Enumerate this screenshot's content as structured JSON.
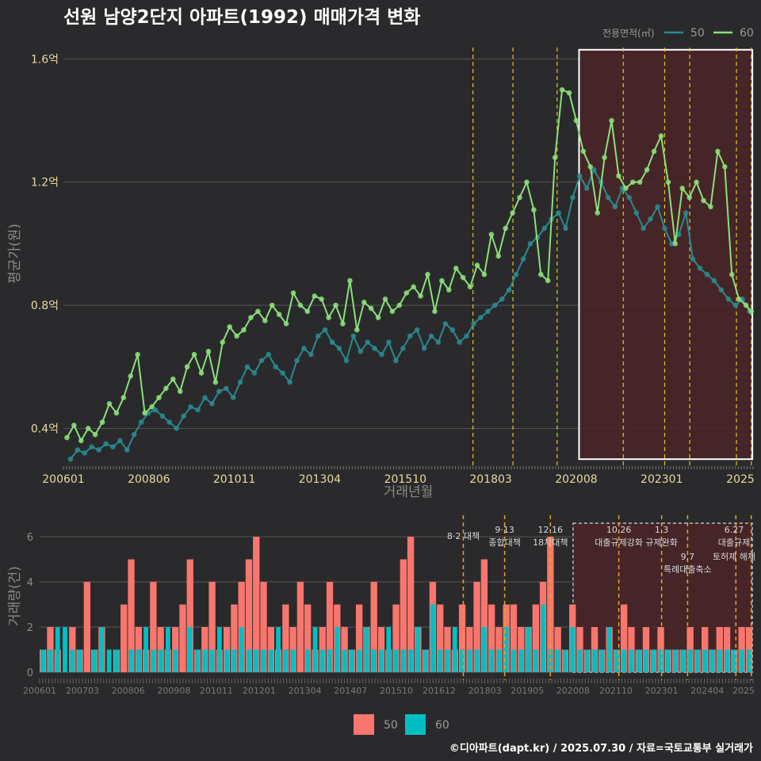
{
  "title": "선원 남양2단지 아파트(1992) 매매가격 변화",
  "caption": "©디아파트(dapt.kr) / 2025.07.30 / 자료=국토교통부 실거래가",
  "colors": {
    "bg": "#2a2a2c",
    "grid": "#555555",
    "series50": "#2a8a8f",
    "series60": "#8be07a",
    "bar50": "#f8766d",
    "bar60": "#00bfc4",
    "policy_line": "#e6c619",
    "policy_line_bottom": "#f0a020",
    "highlight_fill": "#4a2428",
    "highlight_border": "#ffffff"
  },
  "chart_data": [
    {
      "type": "line",
      "name": "price",
      "xlabel": "거래년월",
      "ylabel": "평균가(원)",
      "x_range": [
        2006.0,
        2025.5
      ],
      "ylim": [
        0.28,
        1.65
      ],
      "y_ticks": [
        0.4,
        0.8,
        1.2,
        1.6
      ],
      "y_tick_labels": [
        "0.4억",
        "0.8억",
        "1.2억",
        "1.6억"
      ],
      "x_ticks": [
        2006.0,
        2008.417,
        2010.833,
        2013.25,
        2015.667,
        2018.083,
        2020.5,
        2022.917,
        2025.333
      ],
      "x_tick_labels": [
        "200601",
        "200806",
        "201011",
        "201304",
        "201510",
        "201803",
        "202008",
        "202301",
        "2025"
      ],
      "legend_title": "전용면적(㎡)",
      "legend_position": "top-right",
      "series": [
        {
          "name": "60",
          "x": [
            2006.1,
            2006.3,
            2006.5,
            2006.7,
            2006.9,
            2007.1,
            2007.3,
            2007.5,
            2007.7,
            2007.9,
            2008.1,
            2008.3,
            2008.5,
            2008.7,
            2008.9,
            2009.1,
            2009.3,
            2009.5,
            2009.7,
            2009.9,
            2010.1,
            2010.3,
            2010.5,
            2010.7,
            2010.9,
            2011.1,
            2011.3,
            2011.5,
            2011.7,
            2011.9,
            2012.1,
            2012.3,
            2012.5,
            2012.7,
            2012.9,
            2013.1,
            2013.3,
            2013.5,
            2013.7,
            2013.9,
            2014.1,
            2014.3,
            2014.5,
            2014.7,
            2014.9,
            2015.1,
            2015.3,
            2015.5,
            2015.7,
            2015.9,
            2016.1,
            2016.3,
            2016.5,
            2016.7,
            2016.9,
            2017.1,
            2017.3,
            2017.5,
            2017.7,
            2017.9,
            2018.1,
            2018.3,
            2018.5,
            2018.7,
            2018.9,
            2019.1,
            2019.3,
            2019.5,
            2019.7,
            2019.9,
            2020.1,
            2020.3,
            2020.5,
            2020.7,
            2020.9,
            2021.1,
            2021.3,
            2021.5,
            2021.7,
            2021.9,
            2022.1,
            2022.3,
            2022.5,
            2022.7,
            2022.9,
            2023.1,
            2023.3,
            2023.5,
            2023.7,
            2023.9,
            2024.1,
            2024.3,
            2024.5,
            2024.7,
            2024.9,
            2025.1,
            2025.3,
            2025.45
          ],
          "values": [
            0.37,
            0.41,
            0.36,
            0.4,
            0.38,
            0.42,
            0.48,
            0.45,
            0.5,
            0.57,
            0.64,
            0.45,
            0.47,
            0.5,
            0.53,
            0.56,
            0.52,
            0.6,
            0.64,
            0.58,
            0.65,
            0.55,
            0.68,
            0.73,
            0.7,
            0.72,
            0.76,
            0.78,
            0.75,
            0.8,
            0.77,
            0.74,
            0.84,
            0.8,
            0.78,
            0.83,
            0.82,
            0.76,
            0.8,
            0.74,
            0.88,
            0.72,
            0.81,
            0.79,
            0.76,
            0.82,
            0.78,
            0.8,
            0.84,
            0.86,
            0.83,
            0.9,
            0.78,
            0.88,
            0.85,
            0.92,
            0.89,
            0.86,
            0.93,
            0.9,
            1.03,
            0.96,
            1.05,
            1.1,
            1.15,
            1.2,
            1.11,
            0.9,
            0.88,
            1.28,
            1.5,
            1.49,
            1.4,
            1.3,
            1.25,
            1.1,
            1.28,
            1.4,
            1.22,
            1.18,
            1.2,
            1.2,
            1.24,
            1.3,
            1.35,
            1.2,
            1.0,
            1.18,
            1.15,
            1.2,
            1.14,
            1.12,
            1.3,
            1.25,
            0.9,
            0.82,
            0.8,
            0.78
          ]
        },
        {
          "name": "50",
          "x": [
            2006.2,
            2006.4,
            2006.6,
            2006.8,
            2007.0,
            2007.2,
            2007.4,
            2007.6,
            2007.8,
            2008.0,
            2008.2,
            2008.4,
            2008.6,
            2008.8,
            2009.0,
            2009.2,
            2009.4,
            2009.6,
            2009.8,
            2010.0,
            2010.2,
            2010.4,
            2010.6,
            2010.8,
            2011.0,
            2011.2,
            2011.4,
            2011.6,
            2011.8,
            2012.0,
            2012.2,
            2012.4,
            2012.6,
            2012.8,
            2013.0,
            2013.2,
            2013.4,
            2013.6,
            2013.8,
            2014.0,
            2014.2,
            2014.4,
            2014.6,
            2014.8,
            2015.0,
            2015.2,
            2015.4,
            2015.6,
            2015.8,
            2016.0,
            2016.2,
            2016.4,
            2016.6,
            2016.8,
            2017.0,
            2017.2,
            2017.4,
            2017.6,
            2017.8,
            2018.0,
            2018.2,
            2018.4,
            2018.6,
            2018.8,
            2019.0,
            2019.2,
            2019.4,
            2019.6,
            2019.8,
            2020.0,
            2020.2,
            2020.4,
            2020.6,
            2020.8,
            2021.0,
            2021.2,
            2021.4,
            2021.6,
            2021.8,
            2022.0,
            2022.2,
            2022.4,
            2022.6,
            2022.8,
            2023.0,
            2023.2,
            2023.4,
            2023.6,
            2023.8,
            2024.0,
            2024.2,
            2024.4,
            2024.6,
            2024.8,
            2025.0,
            2025.2,
            2025.4
          ],
          "values": [
            0.3,
            0.33,
            0.32,
            0.34,
            0.33,
            0.35,
            0.34,
            0.36,
            0.33,
            0.38,
            0.42,
            0.45,
            0.46,
            0.44,
            0.42,
            0.4,
            0.44,
            0.47,
            0.46,
            0.5,
            0.48,
            0.52,
            0.53,
            0.5,
            0.55,
            0.6,
            0.58,
            0.62,
            0.64,
            0.6,
            0.58,
            0.55,
            0.62,
            0.66,
            0.64,
            0.7,
            0.72,
            0.68,
            0.66,
            0.62,
            0.7,
            0.65,
            0.68,
            0.66,
            0.64,
            0.68,
            0.62,
            0.66,
            0.7,
            0.72,
            0.66,
            0.7,
            0.68,
            0.74,
            0.72,
            0.68,
            0.7,
            0.74,
            0.76,
            0.78,
            0.8,
            0.82,
            0.85,
            0.9,
            0.95,
            1.0,
            1.02,
            1.05,
            1.08,
            1.1,
            1.05,
            1.15,
            1.22,
            1.18,
            1.24,
            1.2,
            1.15,
            1.12,
            1.18,
            1.15,
            1.1,
            1.05,
            1.08,
            1.12,
            1.05,
            1.0,
            1.03,
            1.1,
            0.95,
            0.92,
            0.9,
            0.88,
            0.85,
            0.82,
            0.8,
            0.82,
            0.78
          ]
        }
      ],
      "policy_dates": [
        2017.58,
        2018.71,
        2019.96,
        2021.83,
        2023.0,
        2023.71,
        2025.03,
        2025.45
      ],
      "highlight_range": [
        2020.58,
        2025.48
      ],
      "highlight_y": [
        0.3,
        1.63
      ]
    },
    {
      "type": "bar",
      "name": "volume",
      "ylabel": "거래량(건)",
      "ylim": [
        0,
        6.6
      ],
      "y_ticks": [
        0,
        2,
        4,
        6
      ],
      "y_tick_labels": [
        "0",
        "2",
        "4",
        "6"
      ],
      "x_ticks": [
        2006.0,
        2007.17,
        2008.42,
        2009.67,
        2010.83,
        2012.0,
        2013.25,
        2014.5,
        2015.75,
        2016.92,
        2018.17,
        2019.33,
        2020.58,
        2021.75,
        2023.0,
        2024.25,
        2025.33
      ],
      "x_tick_labels": [
        "200601",
        "200703",
        "200806",
        "200908",
        "201011",
        "201201",
        "201304",
        "201407",
        "201510",
        "201612",
        "201803",
        "201905",
        "202008",
        "202110",
        "202301",
        "202404",
        "2025"
      ],
      "series": [
        {
          "name": "50",
          "values": [
            1,
            2,
            1,
            0,
            2,
            1,
            4,
            1,
            2,
            0,
            1,
            3,
            5,
            2,
            1,
            4,
            2,
            1,
            2,
            3,
            5,
            1,
            2,
            4,
            1,
            2,
            3,
            4,
            5,
            6,
            4,
            2,
            1,
            3,
            2,
            4,
            3,
            1,
            2,
            4,
            3,
            2,
            1,
            3,
            2,
            4,
            2,
            1,
            3,
            5,
            6,
            2,
            1,
            4,
            3,
            2,
            1,
            3,
            2,
            4,
            5,
            3,
            2,
            3,
            3,
            2,
            2,
            3,
            4,
            6,
            2,
            1,
            3,
            2,
            1,
            2,
            1,
            2,
            1,
            3,
            2,
            1,
            2,
            1,
            2,
            1,
            1,
            1,
            2,
            1,
            2,
            1,
            2,
            2,
            1,
            2,
            2
          ]
        },
        {
          "name": "60",
          "values": [
            1,
            1,
            2,
            2,
            1,
            1,
            0,
            1,
            2,
            1,
            1,
            0,
            1,
            1,
            2,
            1,
            1,
            2,
            1,
            0,
            2,
            1,
            1,
            1,
            2,
            1,
            1,
            2,
            1,
            1,
            1,
            1,
            2,
            1,
            1,
            0,
            1,
            2,
            1,
            1,
            2,
            1,
            1,
            1,
            2,
            1,
            1,
            2,
            1,
            1,
            1,
            2,
            1,
            3,
            1,
            1,
            2,
            1,
            1,
            1,
            2,
            1,
            1,
            2,
            1,
            1,
            2,
            1,
            3,
            1,
            1,
            1,
            2,
            1,
            1,
            1,
            1,
            2,
            1,
            1,
            1,
            1,
            1,
            1,
            1,
            1,
            1,
            1,
            1,
            1,
            1,
            1,
            1,
            1,
            1,
            1,
            1
          ]
        }
      ],
      "legend_entries": [
        "50",
        "60"
      ],
      "legend_position": "bottom",
      "highlight_range": [
        2020.58,
        2025.48
      ],
      "policy_events": [
        {
          "date": 2017.58,
          "label": "8·2 대책"
        },
        {
          "date": 2018.71,
          "label": "9·13\n종합대책"
        },
        {
          "date": 2019.96,
          "label": "12·16\n18차대책"
        },
        {
          "date": 2021.83,
          "label": "10.26\n대출규제강화"
        },
        {
          "date": 2023.0,
          "label": "1.3\n규제완화"
        },
        {
          "date": 2023.71,
          "label": "9.7\n특례대출축소"
        },
        {
          "date": 2025.03,
          "label": "토허제 해제"
        },
        {
          "date": 2025.45,
          "label": "6.27\n대출규제"
        }
      ]
    }
  ]
}
